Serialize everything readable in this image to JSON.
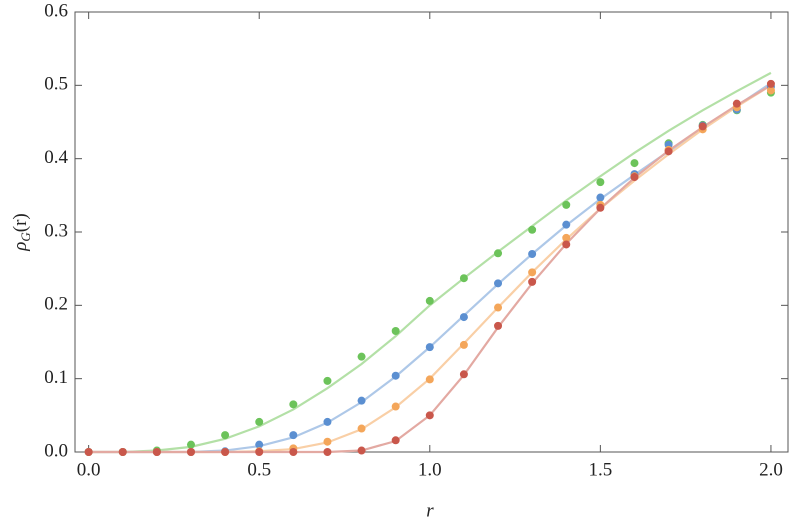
{
  "chart_data": {
    "type": "scatter",
    "xlabel": "r",
    "ylabel": [
      "ρ",
      "G",
      "(r)"
    ],
    "x": [
      0,
      0.1,
      0.2,
      0.3,
      0.4,
      0.5,
      0.6,
      0.7,
      0.8,
      0.9,
      1.0,
      1.1,
      1.2,
      1.3,
      1.4,
      1.5,
      1.6,
      1.7,
      1.8,
      1.9,
      2.0
    ],
    "series": [
      {
        "color": "#6cc35a",
        "line_color": "#b3e0a6",
        "values": [
          0,
          0,
          0.002,
          0.01,
          0.023,
          0.041,
          0.065,
          0.097,
          0.13,
          0.165,
          0.206,
          0.237,
          0.271,
          0.303,
          0.337,
          0.368,
          0.394,
          0.421,
          0.446,
          0.466,
          0.49
        ],
        "fit": [
          0,
          0,
          0.002,
          0.007,
          0.018,
          0.035,
          0.058,
          0.087,
          0.12,
          0.158,
          0.2,
          0.237,
          0.273,
          0.308,
          0.343,
          0.376,
          0.408,
          0.438,
          0.466,
          0.492,
          0.517
        ]
      },
      {
        "color": "#5b8fd1",
        "line_color": "#aec8e8",
        "values": [
          0,
          0,
          0,
          0,
          0.001,
          0.01,
          0.023,
          0.041,
          0.07,
          0.104,
          0.143,
          0.184,
          0.23,
          0.27,
          0.31,
          0.347,
          0.379,
          0.419,
          0.445,
          0.467,
          0.498
        ],
        "fit": [
          0,
          0,
          0,
          0,
          0.002,
          0.008,
          0.02,
          0.04,
          0.068,
          0.103,
          0.143,
          0.186,
          0.229,
          0.27,
          0.309,
          0.345,
          0.378,
          0.41,
          0.44,
          0.472,
          0.503
        ]
      },
      {
        "color": "#f4a65a",
        "line_color": "#f9cfa6",
        "values": [
          0,
          0,
          0,
          0,
          0,
          0.001,
          0.005,
          0.014,
          0.032,
          0.062,
          0.099,
          0.146,
          0.197,
          0.245,
          0.292,
          0.337,
          0.376,
          0.412,
          0.44,
          0.47,
          0.493
        ],
        "fit": [
          0,
          0,
          0,
          0,
          0,
          0.001,
          0.004,
          0.013,
          0.031,
          0.061,
          0.1,
          0.148,
          0.197,
          0.245,
          0.29,
          0.332,
          0.37,
          0.406,
          0.44,
          0.471,
          0.5
        ]
      },
      {
        "color": "#c9574b",
        "line_color": "#e3a9a2",
        "values": [
          0,
          0,
          0,
          0,
          0,
          0,
          0,
          0,
          0.002,
          0.016,
          0.05,
          0.106,
          0.172,
          0.232,
          0.283,
          0.333,
          0.375,
          0.41,
          0.444,
          0.475,
          0.502
        ],
        "fit": [
          0,
          0,
          0,
          0,
          0,
          0,
          0,
          0,
          0.002,
          0.015,
          0.05,
          0.105,
          0.17,
          0.23,
          0.284,
          0.332,
          0.374,
          0.411,
          0.443,
          0.473,
          0.5
        ]
      }
    ],
    "xlim": [
      -0.04,
      2.05
    ],
    "ylim": [
      0,
      0.6
    ],
    "xticks": [
      {
        "value": 0,
        "label": "0.0"
      },
      0.5,
      {
        "value": 1,
        "label": "1.0"
      },
      1.5,
      {
        "value": 2,
        "label": "2.0"
      }
    ],
    "yticks": [
      {
        "value": 0,
        "label": "0.0"
      },
      0.1,
      0.2,
      0.3,
      0.4,
      0.5,
      0.6
    ],
    "frame_color": "#555"
  }
}
